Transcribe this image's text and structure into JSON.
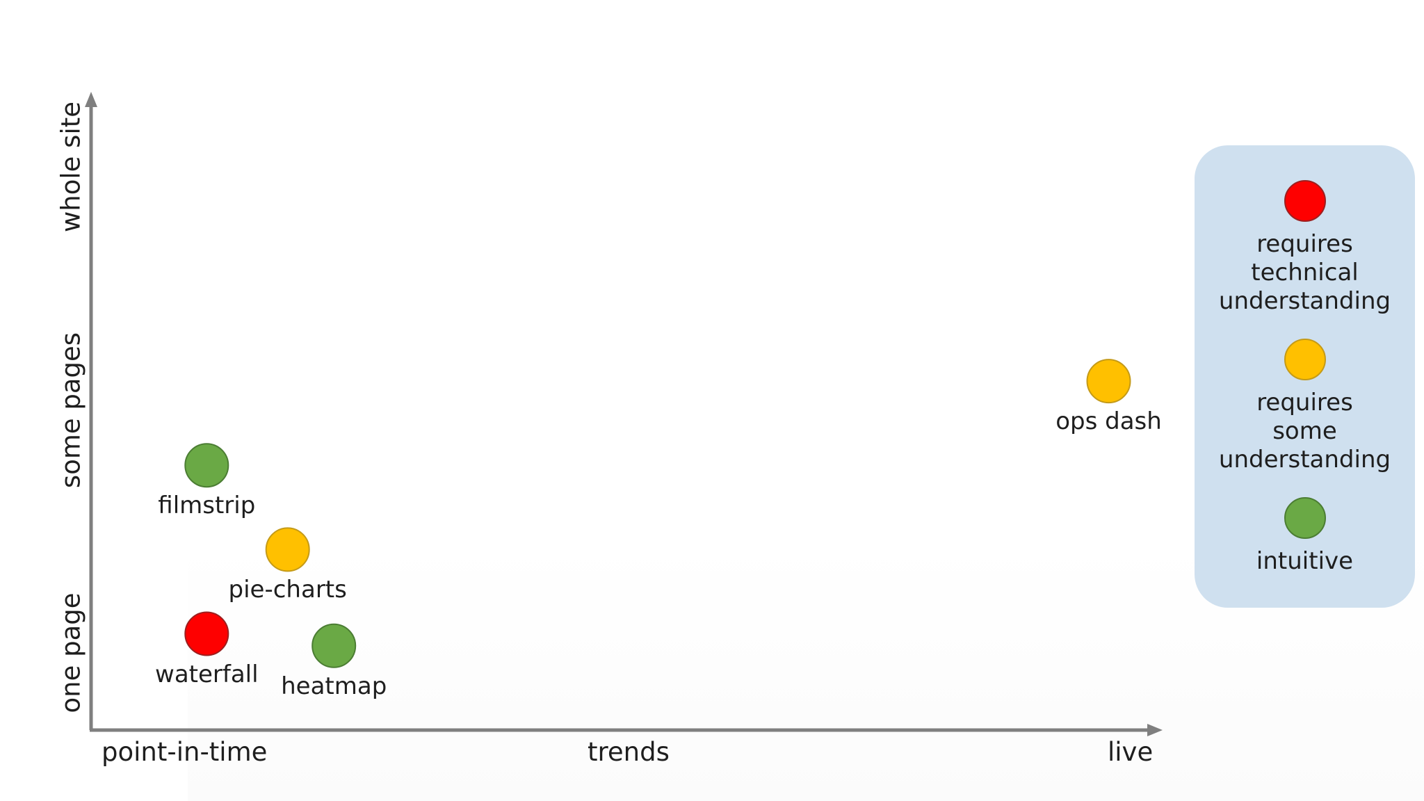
{
  "chart_data": {
    "type": "scatter",
    "x_axis": {
      "tick_labels": [
        "point-in-time",
        "trends",
        "live"
      ]
    },
    "y_axis": {
      "tick_labels": [
        "one page",
        "some pages",
        "whole site"
      ]
    },
    "points": [
      {
        "label": "filmstrip",
        "x": 0.5,
        "y": 1.1,
        "category": "intuitive"
      },
      {
        "label": "pie-charts",
        "x": 0.85,
        "y": 0.75,
        "category": "requires some understanding"
      },
      {
        "label": "waterfall",
        "x": 0.5,
        "y": 0.4,
        "category": "requires technical understanding"
      },
      {
        "label": "heatmap",
        "x": 1.05,
        "y": 0.35,
        "category": "intuitive"
      },
      {
        "label": "ops dash",
        "x": 4.4,
        "y": 1.45,
        "category": "requires some understanding"
      }
    ],
    "xlim": [
      0,
      4.6
    ],
    "ylim": [
      0,
      2.6
    ],
    "legend": {
      "placement": "right",
      "entries": [
        {
          "label": [
            "requires",
            "technical",
            "understanding"
          ],
          "color": "#fe0000",
          "category": "requires technical understanding"
        },
        {
          "label": [
            "requires",
            "some",
            "understanding"
          ],
          "color": "#ffc000",
          "category": "requires some understanding"
        },
        {
          "label": [
            "intuitive"
          ],
          "color": "#6aa945",
          "category": "intuitive"
        }
      ]
    }
  },
  "colors": {
    "axis": "#7f7f7f",
    "legend_bg": "#cfe0ef",
    "text": "#1e1e1e"
  }
}
